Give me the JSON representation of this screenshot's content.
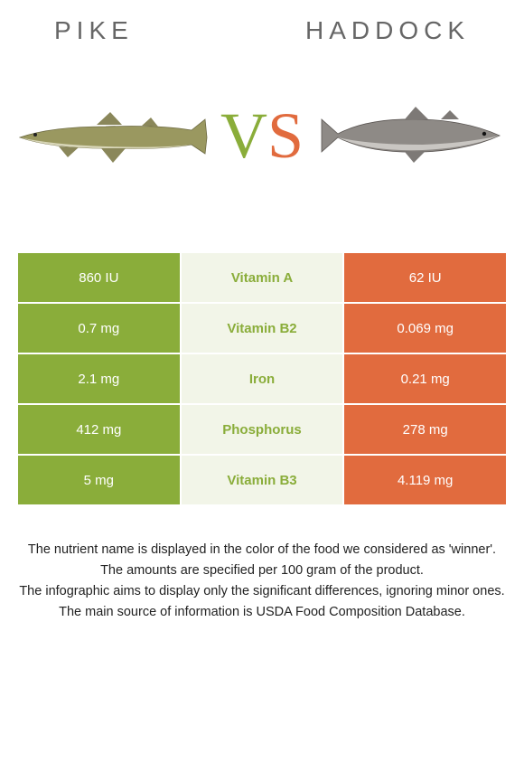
{
  "header": {
    "left_title": "Pike",
    "right_title": "Haddock"
  },
  "vs": {
    "v": "V",
    "s": "S"
  },
  "colors": {
    "pike": "#8aad3a",
    "haddock": "#e16b3e",
    "mid_bg": "#f2f5e8"
  },
  "rows": [
    {
      "left": "860 IU",
      "mid": "Vitamin A",
      "right": "62 IU",
      "winner": "pike"
    },
    {
      "left": "0.7 mg",
      "mid": "Vitamin B2",
      "right": "0.069 mg",
      "winner": "pike"
    },
    {
      "left": "2.1 mg",
      "mid": "Iron",
      "right": "0.21 mg",
      "winner": "pike"
    },
    {
      "left": "412 mg",
      "mid": "Phosphorus",
      "right": "278 mg",
      "winner": "pike"
    },
    {
      "left": "5 mg",
      "mid": "Vitamin B3",
      "right": "4.119 mg",
      "winner": "pike"
    }
  ],
  "notes": {
    "line1": "The nutrient name is displayed in the color of the food we considered as 'winner'.",
    "line2": "The amounts are specified per 100 gram of the product.",
    "line3": "The infographic aims to display only the significant differences, ignoring minor ones.",
    "line4": "The main source of information is USDA Food Composition Database."
  }
}
